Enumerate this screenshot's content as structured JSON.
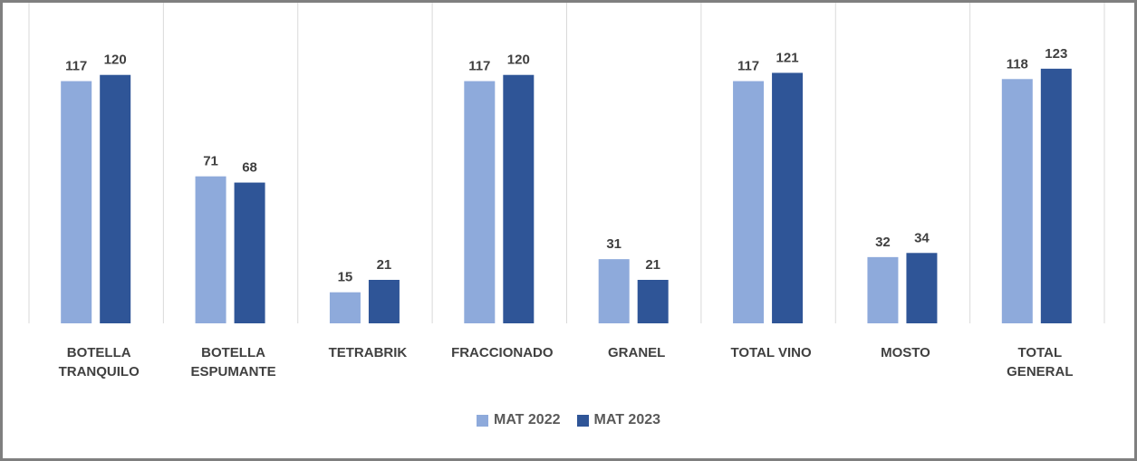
{
  "chart_data": {
    "type": "bar",
    "categories": [
      "BOTELLA TRANQUILO",
      "BOTELLA ESPUMANTE",
      "TETRABRIK",
      "FRACCIONADO",
      "GRANEL",
      "TOTAL VINO",
      "MOSTO",
      "TOTAL GENERAL"
    ],
    "series": [
      {
        "name": "MAT 2022",
        "color": "#8eaadb",
        "values": [
          117,
          71,
          15,
          117,
          31,
          117,
          32,
          118
        ]
      },
      {
        "name": "MAT 2023",
        "color": "#2f5597",
        "values": [
          120,
          68,
          21,
          120,
          21,
          121,
          34,
          123
        ]
      }
    ],
    "ylim": [
      0,
      140
    ],
    "legend": "bottom"
  }
}
